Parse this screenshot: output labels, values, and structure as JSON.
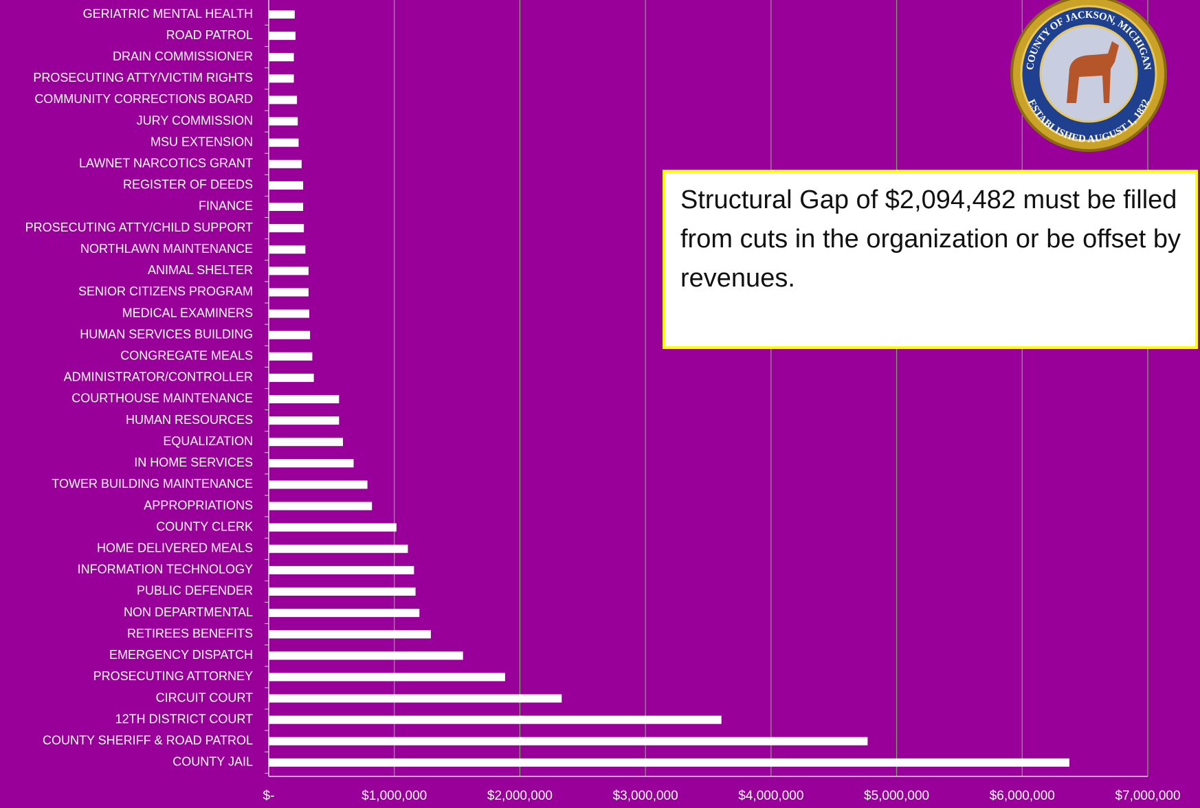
{
  "chart_data": {
    "type": "barh",
    "categories": [
      "GERIATRIC MENTAL HEALTH",
      "ROAD PATROL",
      "DRAIN COMMISSIONER",
      "PROSECUTING ATTY/VICTIM RIGHTS",
      "COMMUNITY CORRECTIONS BOARD",
      "JURY COMMISSION",
      "MSU EXTENSION",
      "LAWNET NARCOTICS GRANT",
      "REGISTER OF DEEDS",
      "FINANCE",
      "PROSECUTING ATTY/CHILD SUPPORT",
      "NORTHLAWN MAINTENANCE",
      "ANIMAL SHELTER",
      "SENIOR CITIZENS PROGRAM",
      "MEDICAL EXAMINERS",
      "HUMAN SERVICES BUILDING",
      "CONGREGATE MEALS",
      "ADMINISTRATOR/CONTROLLER",
      "COURTHOUSE MAINTENANCE",
      "HUMAN RESOURCES",
      "EQUALIZATION",
      "IN HOME SERVICES",
      "TOWER BUILDING MAINTENANCE",
      "APPROPRIATIONS",
      "COUNTY CLERK",
      "HOME DELIVERED MEALS",
      "INFORMATION TECHNOLOGY",
      "PUBLIC DEFENDER",
      "NON DEPARTMENTAL",
      "RETIREES BENEFITS",
      "EMERGENCY DISPATCH",
      "PROSECUTING ATTORNEY",
      "CIRCUIT COURT",
      "12TH DISTRICT COURT",
      "COUNTY SHERIFF & ROAD PATROL",
      "COUNTY JAIL"
    ],
    "values": [
      207000,
      213000,
      200000,
      200000,
      225000,
      231000,
      238000,
      262000,
      274000,
      274000,
      280000,
      292000,
      317000,
      317000,
      323000,
      329000,
      347000,
      359000,
      560000,
      560000,
      591000,
      676000,
      786000,
      822000,
      1017000,
      1108000,
      1157000,
      1169000,
      1200000,
      1291000,
      1547000,
      1882000,
      2333000,
      3605000,
      4769000,
      6376000
    ],
    "color": "#ffffff",
    "xlim": [
      0,
      7000000
    ],
    "xticks": [
      {
        "value": 0,
        "label": "$-"
      },
      {
        "value": 1000000,
        "label": "$1,000,000"
      },
      {
        "value": 2000000,
        "label": "$2,000,000"
      },
      {
        "value": 3000000,
        "label": "$3,000,000"
      },
      {
        "value": 4000000,
        "label": "$4,000,000"
      },
      {
        "value": 5000000,
        "label": "$5,000,000"
      },
      {
        "value": 6000000,
        "label": "$6,000,000"
      },
      {
        "value": 7000000,
        "label": "$7,000,000"
      }
    ],
    "grid": true,
    "annotation": "Structural Gap of $2,094,482 must be filled from cuts in the organization or be offset by revenues."
  },
  "seal": {
    "top": "COUNTY OF JACKSON, MICHIGAN",
    "bottom": "ESTABLISHED AUGUST 1, 1832"
  }
}
